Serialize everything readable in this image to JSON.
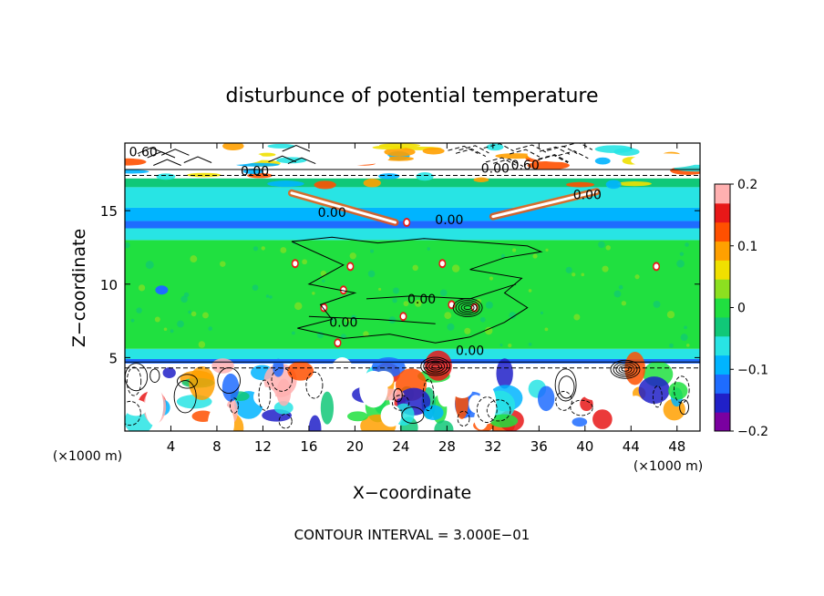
{
  "chart_data": {
    "type": "heatmap",
    "title": "disturbunce of potential temperature",
    "xlabel": "X−coordinate",
    "ylabel": "Z−coordinate",
    "x_unit_left": "(×1000 m)",
    "x_unit_right": "(×1000 m)",
    "footer": "CONTOUR INTERVAL = 3.000E−01",
    "xlim": [
      0,
      50
    ],
    "ylim": [
      0,
      19.6
    ],
    "x_ticks": [
      4,
      8,
      12,
      16,
      20,
      24,
      28,
      32,
      36,
      40,
      44,
      48
    ],
    "y_ticks": [
      5,
      10,
      15
    ],
    "colorbar": {
      "range": [
        -0.2,
        0.2
      ],
      "ticks": [
        "0.2",
        "0.1",
        "0",
        "−0.1",
        "−0.2"
      ],
      "colors": [
        "#7a00a0",
        "#2020c8",
        "#1e6cff",
        "#00b4ff",
        "#28e4e4",
        "#10c878",
        "#20e040",
        "#8ce020",
        "#f0e000",
        "#ffa000",
        "#ff5000",
        "#e81818",
        "#ffb0b0"
      ]
    },
    "bands": [
      {
        "z0": 0.0,
        "z1": 4.6,
        "color": "#ffffff"
      },
      {
        "z0": 4.6,
        "z1": 4.9,
        "color": "#1e6cff"
      },
      {
        "z0": 4.9,
        "z1": 5.6,
        "color": "#28e4e4"
      },
      {
        "z0": 5.6,
        "z1": 13.0,
        "color": "#20e040"
      },
      {
        "z0": 13.0,
        "z1": 13.8,
        "color": "#28e4e4"
      },
      {
        "z0": 13.8,
        "z1": 14.3,
        "color": "#1e6cff"
      },
      {
        "z0": 14.3,
        "z1": 15.2,
        "color": "#00b4ff"
      },
      {
        "z0": 15.2,
        "z1": 16.6,
        "color": "#28e4e4"
      },
      {
        "z0": 16.6,
        "z1": 17.2,
        "color": "#10c878"
      },
      {
        "z0": 17.2,
        "z1": 19.6,
        "color": "#ffffff"
      }
    ],
    "contour_labels": [
      {
        "x": 1.6,
        "z": 19.0,
        "text": "0.60"
      },
      {
        "x": 11.3,
        "z": 17.7,
        "text": "0.00"
      },
      {
        "x": 18.0,
        "z": 14.9,
        "text": "0.00"
      },
      {
        "x": 28.2,
        "z": 14.4,
        "text": "0.00"
      },
      {
        "x": 32.2,
        "z": 17.9,
        "text": "0.00"
      },
      {
        "x": 34.8,
        "z": 18.1,
        "text": "0.60"
      },
      {
        "x": 40.2,
        "z": 16.1,
        "text": "0.00"
      },
      {
        "x": 25.8,
        "z": 9.0,
        "text": "0.00"
      },
      {
        "x": 19.0,
        "z": 7.4,
        "text": "0.00"
      },
      {
        "x": 30.0,
        "z": 5.5,
        "text": "0.00"
      }
    ]
  }
}
